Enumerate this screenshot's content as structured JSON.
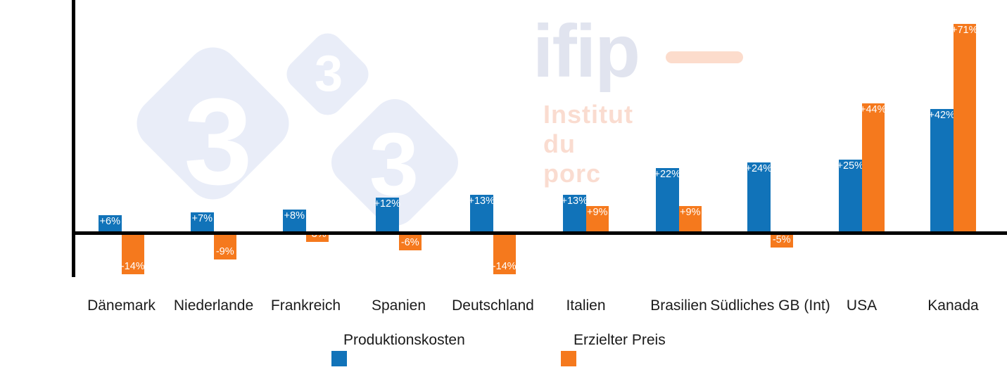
{
  "chart_data": {
    "type": "bar",
    "title": "",
    "xlabel": "",
    "ylabel": "",
    "categories": [
      "Dänemark",
      "Niederlande",
      "Frankreich",
      "Spanien",
      "Deutschland",
      "Italien",
      "Brasilien",
      "Südliches GB (Int)",
      "USA",
      "Kanada"
    ],
    "series": [
      {
        "name": "Produktionskosten",
        "color": "#1173b9",
        "values": [
          6,
          7,
          8,
          12,
          13,
          13,
          22,
          24,
          25,
          42
        ],
        "labels": [
          "+6%",
          "+7%",
          "+8%",
          "+12%",
          "+13%",
          "+13%",
          "+22%",
          "+24%",
          "+25%",
          "+42%"
        ]
      },
      {
        "name": "Erzielter Preis",
        "color": "#f5791d",
        "values": [
          -14,
          -9,
          -3,
          -6,
          -14,
          9,
          9,
          -5,
          44,
          71
        ],
        "labels": [
          "-14%",
          "-9%",
          "-3%",
          "-6%",
          "-14%",
          "+9%",
          "+9%",
          "-5%",
          "+44%",
          "+71%"
        ]
      }
    ],
    "ylim": [
      -20,
      75
    ],
    "baseline_value": 0,
    "grid": false,
    "legend_position": "bottom",
    "value_label_color": "#ffffff",
    "axis_color": "#000000"
  },
  "legend": {
    "items": [
      {
        "label": "Produktionskosten",
        "color": "#1173b9"
      },
      {
        "label": "Erzielter Preis",
        "color": "#f5791d"
      }
    ]
  },
  "watermarks": {
    "logo333": {
      "digits": [
        "3",
        "3",
        "3"
      ],
      "diamond_color": "#e9edf8",
      "digit_color": "#ffffff"
    },
    "ifip": {
      "brand": "ifip",
      "tagline": "Institut du porc",
      "brand_color": "#e1e4ef",
      "tagline_color": "#fadcd0",
      "dash_color": "#fcdccc"
    }
  }
}
